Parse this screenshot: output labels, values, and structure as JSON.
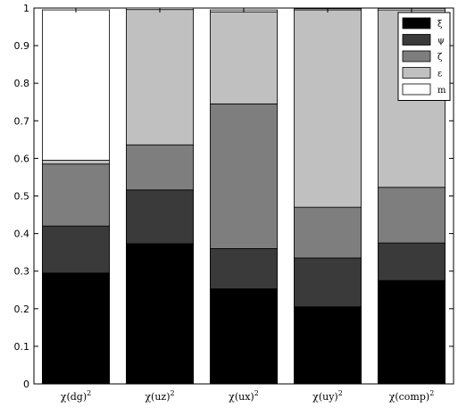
{
  "chart_data": {
    "type": "bar",
    "stacked": true,
    "categories": [
      "χ(dg)",
      "χ(uz)",
      "χ(ux)",
      "χ(uy)",
      "χ(comp)"
    ],
    "category_exponent": "2",
    "ylim": [
      0,
      1
    ],
    "yticks": [
      "0",
      "0.1",
      "0.2",
      "0.3",
      "0.4",
      "0.5",
      "0.6",
      "0.7",
      "0.8",
      "0.9",
      "1"
    ],
    "ytick_values": [
      0,
      0.1,
      0.2,
      0.3,
      0.4,
      0.5,
      0.6,
      0.7,
      0.8,
      0.9,
      1.0
    ],
    "legend_position": "top-right",
    "grid": false,
    "series": [
      {
        "name": "ξ",
        "color": "#000000",
        "values": [
          0.295,
          0.373,
          0.253,
          0.205,
          0.275
        ]
      },
      {
        "name": "ψ",
        "color": "#3a3a3a",
        "values": [
          0.125,
          0.143,
          0.107,
          0.13,
          0.1
        ]
      },
      {
        "name": "ζ",
        "color": "#7e7e7e",
        "values": [
          0.165,
          0.12,
          0.385,
          0.135,
          0.148
        ]
      },
      {
        "name": "ε",
        "color": "#c0c0c0",
        "values": [
          0.01,
          0.36,
          0.245,
          0.525,
          0.472
        ]
      },
      {
        "name": "m",
        "color": "#ffffff",
        "values": [
          0.4,
          0.004,
          0.005,
          0.003,
          0.004
        ]
      }
    ]
  }
}
